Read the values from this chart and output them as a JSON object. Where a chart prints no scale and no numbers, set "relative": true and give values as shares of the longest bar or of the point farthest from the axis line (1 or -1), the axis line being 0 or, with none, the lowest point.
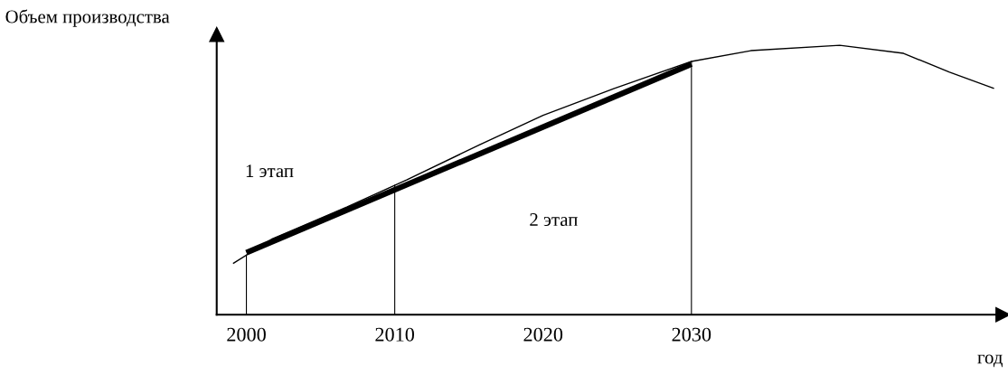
{
  "chart_data": {
    "type": "line",
    "relative": true,
    "xlabel": "год",
    "ylabel": "Объем производства",
    "x": [
      1999.1,
      2001.7,
      2006.8,
      2010.8,
      2015.7,
      2020.0,
      2024.8,
      2030.0,
      2034.0,
      2040.0,
      2044.3,
      2047.4,
      2050.4
    ],
    "series": [
      {
        "color": "#000000",
        "values": [
          0.19,
          0.28,
          0.4,
          0.5,
          0.63,
          0.74,
          0.84,
          0.94,
          0.98,
          1.0,
          0.97,
          0.9,
          0.84
        ]
      },
      {
        "color": "#000000",
        "x": [
          2000,
          2030
        ],
        "values": [
          0.23,
          0.93
        ]
      }
    ],
    "xlim": [
      1998,
      2051
    ],
    "xticks": [
      2000,
      2010,
      2020,
      2030
    ],
    "ref_lines": [
      {
        "axis": "x",
        "value": 2000,
        "color": "#000000"
      },
      {
        "axis": "x",
        "value": 2010,
        "color": "#000000"
      },
      {
        "axis": "x",
        "value": 2030,
        "color": "#000000"
      }
    ],
    "annotations": [
      "1 этап",
      "2 этап"
    ],
    "grid": false,
    "legend": false,
    "marker": "none",
    "line_style": "solid"
  }
}
